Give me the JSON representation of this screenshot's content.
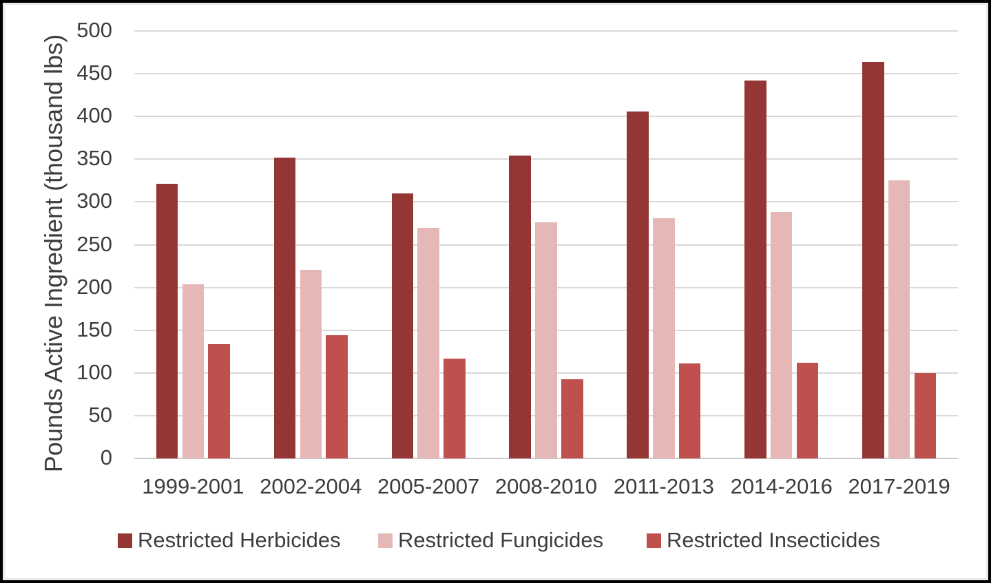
{
  "chart_data": {
    "type": "bar",
    "title": "",
    "xlabel": "",
    "ylabel": "Pounds Active Ingredient (thousand lbs)",
    "ylim": [
      0,
      500
    ],
    "ytick_interval": 50,
    "yticks": [
      0,
      50,
      100,
      150,
      200,
      250,
      300,
      350,
      400,
      450,
      500
    ],
    "grid": true,
    "legend_position": "bottom",
    "categories": [
      "1999-2001",
      "2002-2004",
      "2005-2007",
      "2008-2010",
      "2011-2013",
      "2014-2016",
      "2017-2019"
    ],
    "series": [
      {
        "name": "Restricted Herbicides",
        "color": "#943634",
        "values": [
          321,
          352,
          310,
          354,
          406,
          442,
          464
        ]
      },
      {
        "name": "Restricted Fungicides",
        "color": "#e5b8b7",
        "values": [
          204,
          221,
          270,
          276,
          281,
          288,
          325
        ]
      },
      {
        "name": "Restricted Insecticides",
        "color": "#c0504d",
        "values": [
          134,
          144,
          117,
          93,
          111,
          112,
          100
        ]
      }
    ]
  },
  "colors": {
    "background": "#ffffff",
    "frame_border": "#000000",
    "gridline": "#d9d9d9",
    "axis_line": "#c8c8c8",
    "text": "#3d3d3d"
  }
}
